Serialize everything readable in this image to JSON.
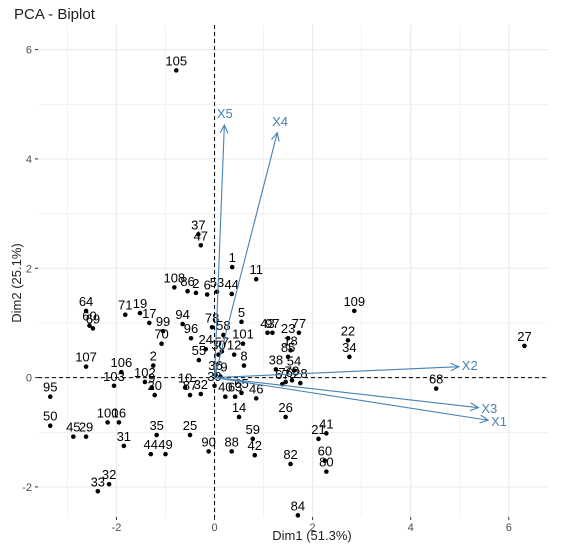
{
  "chart_data": {
    "type": "scatter",
    "title": "PCA - Biplot",
    "xlabel": "Dim1 (51.3%)",
    "ylabel": "Dim2 (25.1%)",
    "xlim": [
      -3.6,
      6.8
    ],
    "ylim": [
      -2.55,
      6.45
    ],
    "x_ticks": [
      -2,
      0,
      2,
      4,
      6
    ],
    "y_ticks": [
      -2,
      0,
      2,
      4,
      6
    ],
    "grid": true,
    "reference_lines": {
      "x": 0,
      "y": 0,
      "style": "dashed"
    },
    "arrow_color": "#4682B4",
    "point_color": "#000000",
    "grid_color": "#EBEBEB",
    "points": [
      {
        "label": "105",
        "x": -0.78,
        "y": 5.62
      },
      {
        "label": "37",
        "x": -0.33,
        "y": 2.62
      },
      {
        "label": "47",
        "x": -0.28,
        "y": 2.42
      },
      {
        "label": "1",
        "x": 0.36,
        "y": 2.02
      },
      {
        "label": "11",
        "x": 0.85,
        "y": 1.8
      },
      {
        "label": "108",
        "x": -0.82,
        "y": 1.65
      },
      {
        "label": "86",
        "x": -0.55,
        "y": 1.58
      },
      {
        "label": "2",
        "x": -0.38,
        "y": 1.55
      },
      {
        "label": "6",
        "x": -0.15,
        "y": 1.52
      },
      {
        "label": "53",
        "x": 0.05,
        "y": 1.57
      },
      {
        "label": "44",
        "x": 0.35,
        "y": 1.53
      },
      {
        "label": "64",
        "x": -2.62,
        "y": 1.22
      },
      {
        "label": "71",
        "x": -1.82,
        "y": 1.15
      },
      {
        "label": "19",
        "x": -1.52,
        "y": 1.18
      },
      {
        "label": "17",
        "x": -1.33,
        "y": 1.0
      },
      {
        "label": "109",
        "x": 2.85,
        "y": 1.22
      },
      {
        "label": "60",
        "x": -2.55,
        "y": 0.95
      },
      {
        "label": "69",
        "x": -2.48,
        "y": 0.9
      },
      {
        "label": "99",
        "x": -1.05,
        "y": 0.85
      },
      {
        "label": "94",
        "x": -0.65,
        "y": 0.98
      },
      {
        "label": "78",
        "x": -0.05,
        "y": 0.92
      },
      {
        "label": "5",
        "x": 0.55,
        "y": 1.02
      },
      {
        "label": "58",
        "x": 0.18,
        "y": 0.78
      },
      {
        "label": "43",
        "x": 1.08,
        "y": 0.82
      },
      {
        "label": "97",
        "x": 1.18,
        "y": 0.82
      },
      {
        "label": "101",
        "x": 0.58,
        "y": 0.62
      },
      {
        "label": "77",
        "x": 1.72,
        "y": 0.82
      },
      {
        "label": "23",
        "x": 1.5,
        "y": 0.72
      },
      {
        "label": "22",
        "x": 2.72,
        "y": 0.68
      },
      {
        "label": "27",
        "x": 6.32,
        "y": 0.58
      },
      {
        "label": "70",
        "x": -1.08,
        "y": 0.62
      },
      {
        "label": "96",
        "x": -0.48,
        "y": 0.72
      },
      {
        "label": "24",
        "x": -0.18,
        "y": 0.52
      },
      {
        "label": "57",
        "x": 0.15,
        "y": 0.48
      },
      {
        "label": "30",
        "x": 0.08,
        "y": 0.42
      },
      {
        "label": "12",
        "x": 0.4,
        "y": 0.42
      },
      {
        "label": "55",
        "x": -0.32,
        "y": 0.32
      },
      {
        "label": "8",
        "x": 0.6,
        "y": 0.22
      },
      {
        "label": "18",
        "x": 1.55,
        "y": 0.5
      },
      {
        "label": "85",
        "x": 1.5,
        "y": 0.38
      },
      {
        "label": "34",
        "x": 2.75,
        "y": 0.38
      },
      {
        "label": "107",
        "x": -2.62,
        "y": 0.2
      },
      {
        "label": "106",
        "x": -1.9,
        "y": 0.1
      },
      {
        "label": "2b",
        "x": -1.25,
        "y": 0.22
      },
      {
        "label": "38",
        "x": 1.25,
        "y": 0.15
      },
      {
        "label": "54",
        "x": 1.62,
        "y": 0.13
      },
      {
        "label": "36",
        "x": 0.02,
        "y": 0.05
      },
      {
        "label": "79",
        "x": 0.12,
        "y": 0.02
      },
      {
        "label": "95",
        "x": -3.35,
        "y": -0.35
      },
      {
        "label": "103",
        "x": -2.05,
        "y": -0.15
      },
      {
        "label": "102",
        "x": -1.42,
        "y": -0.08
      },
      {
        "label": "9",
        "x": -1.28,
        "y": -0.18
      },
      {
        "label": "10",
        "x": -0.6,
        "y": -0.18
      },
      {
        "label": "39",
        "x": 0.0,
        "y": -0.15
      },
      {
        "label": "65",
        "x": 0.55,
        "y": -0.28
      },
      {
        "label": "67",
        "x": 1.38,
        "y": -0.12
      },
      {
        "label": "76",
        "x": 1.45,
        "y": -0.08
      },
      {
        "label": "73",
        "x": 1.58,
        "y": -0.05
      },
      {
        "label": "28",
        "x": 1.75,
        "y": -0.1
      },
      {
        "label": "68",
        "x": 4.52,
        "y": -0.2
      },
      {
        "label": "20",
        "x": -1.22,
        "y": -0.32
      },
      {
        "label": "87",
        "x": -0.5,
        "y": -0.32
      },
      {
        "label": "32b",
        "x": -0.28,
        "y": -0.3
      },
      {
        "label": "40",
        "x": 0.22,
        "y": -0.35
      },
      {
        "label": "63",
        "x": 0.42,
        "y": -0.35
      },
      {
        "label": "46",
        "x": 0.85,
        "y": -0.38
      },
      {
        "label": "50",
        "x": -3.35,
        "y": -0.88
      },
      {
        "label": "45",
        "x": -2.88,
        "y": -1.08
      },
      {
        "label": "29",
        "x": -2.62,
        "y": -1.08
      },
      {
        "label": "100",
        "x": -2.18,
        "y": -0.82
      },
      {
        "label": "16",
        "x": -1.95,
        "y": -0.82
      },
      {
        "label": "14",
        "x": 0.5,
        "y": -0.72
      },
      {
        "label": "26",
        "x": 1.45,
        "y": -0.72
      },
      {
        "label": "25",
        "x": -0.5,
        "y": -1.05
      },
      {
        "label": "21",
        "x": 2.12,
        "y": -1.12
      },
      {
        "label": "41",
        "x": 2.28,
        "y": -1.02
      },
      {
        "label": "31",
        "x": -1.85,
        "y": -1.25
      },
      {
        "label": "35",
        "x": -1.18,
        "y": -1.05
      },
      {
        "label": "44b",
        "x": -1.3,
        "y": -1.4
      },
      {
        "label": "49",
        "x": -1.0,
        "y": -1.4
      },
      {
        "label": "90",
        "x": -0.12,
        "y": -1.35
      },
      {
        "label": "88",
        "x": 0.35,
        "y": -1.35
      },
      {
        "label": "59",
        "x": 0.78,
        "y": -1.12
      },
      {
        "label": "42",
        "x": 0.82,
        "y": -1.42
      },
      {
        "label": "82",
        "x": 1.55,
        "y": -1.58
      },
      {
        "label": "60b",
        "x": 2.25,
        "y": -1.52
      },
      {
        "label": "80",
        "x": 2.28,
        "y": -1.72
      },
      {
        "label": "32",
        "x": -2.15,
        "y": -1.95
      },
      {
        "label": "33",
        "x": -2.38,
        "y": -2.08
      },
      {
        "label": "84",
        "x": 1.7,
        "y": -2.52
      }
    ],
    "variables": [
      {
        "name": "X5",
        "x": 0.2,
        "y": 4.62
      },
      {
        "name": "X4",
        "x": 1.28,
        "y": 4.48
      },
      {
        "name": "X2",
        "x": 4.98,
        "y": 0.2
      },
      {
        "name": "X3",
        "x": 5.38,
        "y": -0.55
      },
      {
        "name": "X1",
        "x": 5.58,
        "y": -0.78
      }
    ]
  }
}
